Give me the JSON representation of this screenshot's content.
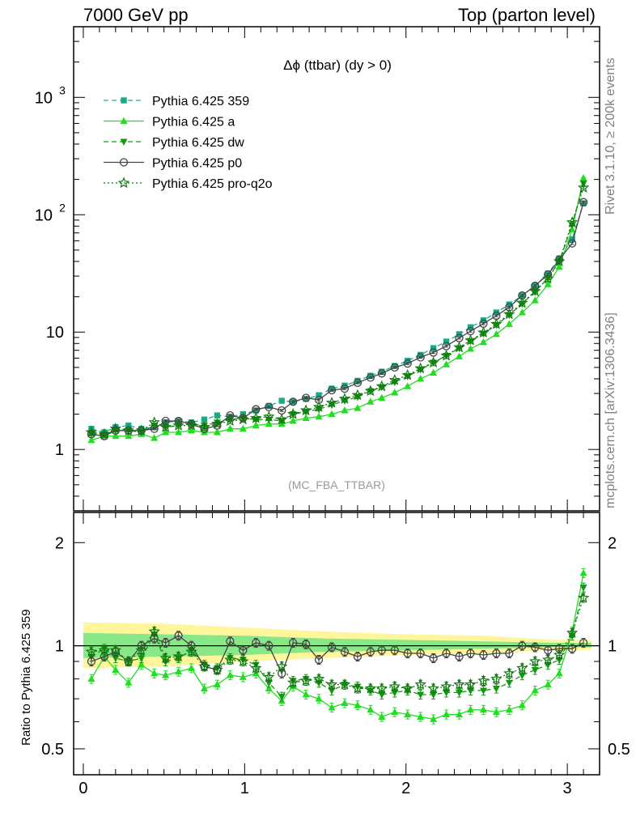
{
  "header": {
    "left": "7000 GeV pp",
    "right": "Top (parton level)"
  },
  "side_labels": {
    "rivet": "Rivet 3.1.10, ≥ 200k events",
    "mcplots": "mcplots.cern.ch [arXiv:1306.3436]"
  },
  "plot_title": "Δϕ (ttbar) (dy > 0)",
  "analysis_label": "(MC_FBA_TTBAR)",
  "ratio_ylabel": "Ratio to Pythia 6.425 359",
  "top_ticks": [
    {
      "v": 1,
      "label": "1",
      "sup": ""
    },
    {
      "v": 10,
      "label": "10",
      "sup": ""
    },
    {
      "v": 100,
      "label": "10",
      "sup": "2"
    },
    {
      "v": 1000,
      "label": "10",
      "sup": "3"
    }
  ],
  "ratio_ticks": [
    {
      "v": 0.5,
      "label": "0.5"
    },
    {
      "v": 1,
      "label": "1"
    },
    {
      "v": 2,
      "label": "2"
    }
  ],
  "x_ticks": [
    {
      "v": 0,
      "label": "0"
    },
    {
      "v": 1,
      "label": "1"
    },
    {
      "v": 2,
      "label": "2"
    },
    {
      "v": 3,
      "label": "3"
    }
  ],
  "colors": {
    "p359": "#1aaa88",
    "pa": "#22dd22",
    "pdw": "#119911",
    "pp0": "#444444",
    "pq2o": "#117711",
    "band_yellow": "#fff59a",
    "band_green": "#88e888"
  },
  "chart_data": [
    {
      "type": "line",
      "yscale": "log",
      "xlim": [
        -0.06,
        3.2
      ],
      "ylim": [
        0.3,
        4000
      ],
      "x": [
        0.05,
        0.13,
        0.2,
        0.28,
        0.36,
        0.44,
        0.51,
        0.59,
        0.67,
        0.75,
        0.83,
        0.91,
        0.99,
        1.07,
        1.15,
        1.23,
        1.3,
        1.38,
        1.46,
        1.54,
        1.62,
        1.7,
        1.78,
        1.85,
        1.93,
        2.01,
        2.09,
        2.17,
        2.25,
        2.33,
        2.4,
        2.48,
        2.56,
        2.64,
        2.72,
        2.8,
        2.88,
        2.95,
        3.03,
        3.1
      ],
      "series": [
        {
          "name": "Pythia 6.425 359",
          "key": "p359",
          "marker": "square",
          "dash": "6,4",
          "values": [
            1.5,
            1.4,
            1.55,
            1.6,
            1.5,
            1.55,
            1.7,
            1.75,
            1.7,
            1.8,
            1.95,
            1.9,
            2.0,
            2.15,
            2.35,
            2.6,
            2.55,
            2.7,
            2.9,
            3.3,
            3.5,
            3.85,
            4.25,
            4.6,
            5.15,
            5.7,
            6.4,
            7.3,
            8.3,
            9.6,
            11.0,
            12.6,
            14.7,
            17.2,
            20.5,
            24.8,
            31.5,
            42.5,
            62.0,
            125.0
          ]
        },
        {
          "name": "Pythia 6.425 a",
          "key": "pa",
          "marker": "triangle-up",
          "dash": "",
          "values": [
            1.2,
            1.3,
            1.3,
            1.3,
            1.35,
            1.25,
            1.4,
            1.4,
            1.45,
            1.4,
            1.4,
            1.5,
            1.5,
            1.6,
            1.65,
            1.65,
            1.75,
            1.85,
            1.9,
            2.0,
            2.15,
            2.25,
            2.55,
            2.75,
            3.05,
            3.45,
            4.0,
            4.5,
            5.3,
            6.2,
            7.2,
            8.2,
            9.6,
            11.7,
            14.7,
            18.6,
            25.5,
            36.0,
            75.0,
            205.0
          ]
        },
        {
          "name": "Pythia 6.425 dw",
          "key": "pdw",
          "marker": "triangle-down",
          "dash": "6,4",
          "values": [
            1.35,
            1.35,
            1.45,
            1.45,
            1.4,
            1.6,
            1.55,
            1.6,
            1.65,
            1.6,
            1.7,
            1.8,
            1.85,
            1.8,
            1.8,
            1.75,
            2.0,
            2.1,
            2.2,
            2.4,
            2.6,
            2.8,
            3.15,
            3.4,
            3.75,
            4.2,
            4.8,
            5.5,
            6.3,
            7.3,
            8.4,
            9.7,
            11.5,
            14.0,
            17.5,
            22.0,
            29.0,
            40.0,
            82.0,
            185.0
          ]
        },
        {
          "name": "Pythia 6.425 p0",
          "key": "pp0",
          "marker": "circle-open",
          "dash": "",
          "values": [
            1.35,
            1.3,
            1.45,
            1.45,
            1.45,
            1.5,
            1.75,
            1.75,
            1.65,
            1.5,
            1.6,
            1.95,
            1.85,
            2.2,
            2.3,
            2.15,
            2.55,
            2.75,
            2.65,
            3.2,
            3.3,
            3.7,
            4.1,
            4.45,
            5.0,
            5.4,
            6.1,
            6.7,
            7.6,
            8.9,
            10.2,
            11.8,
            13.8,
            16.3,
            20.5,
            24.8,
            31.0,
            41.5,
            57.0,
            128.0
          ]
        },
        {
          "name": "Pythia 6.425 pro-q2o",
          "key": "pq2o",
          "marker": "star-open",
          "dash": "2,3",
          "values": [
            1.4,
            1.35,
            1.5,
            1.45,
            1.45,
            1.7,
            1.55,
            1.6,
            1.6,
            1.55,
            1.65,
            1.75,
            1.8,
            1.85,
            1.9,
            1.8,
            2.0,
            2.15,
            2.3,
            2.5,
            2.7,
            2.9,
            3.15,
            3.45,
            3.9,
            4.3,
            4.9,
            5.5,
            6.3,
            7.4,
            8.5,
            9.9,
            11.7,
            14.2,
            17.7,
            22.3,
            28.5,
            40.0,
            86.0,
            170.0
          ]
        }
      ]
    },
    {
      "type": "line",
      "yscale": "log",
      "ylabel": "Ratio to Pythia 6.425 359",
      "xlim": [
        -0.06,
        3.2
      ],
      "ylim": [
        0.42,
        2.45
      ],
      "x": [
        0.05,
        0.13,
        0.2,
        0.28,
        0.36,
        0.44,
        0.51,
        0.59,
        0.67,
        0.75,
        0.83,
        0.91,
        0.99,
        1.07,
        1.15,
        1.23,
        1.3,
        1.38,
        1.46,
        1.54,
        1.62,
        1.7,
        1.78,
        1.85,
        1.93,
        2.01,
        2.09,
        2.17,
        2.25,
        2.33,
        2.4,
        2.48,
        2.56,
        2.64,
        2.72,
        2.8,
        2.88,
        2.95,
        3.03,
        3.1
      ],
      "band_x": [
        0.0,
        0.5,
        1.0,
        1.5,
        2.0,
        2.5,
        2.9,
        3.15
      ],
      "band_yellow_hi": [
        1.17,
        1.16,
        1.13,
        1.1,
        1.08,
        1.07,
        1.04,
        1.04
      ],
      "band_yellow_lo": [
        0.86,
        0.87,
        0.9,
        0.92,
        0.94,
        0.95,
        0.97,
        0.97
      ],
      "band_green_hi": [
        1.09,
        1.08,
        1.07,
        1.05,
        1.04,
        1.03,
        1.02,
        1.02
      ],
      "band_green_lo": [
        0.92,
        0.93,
        0.94,
        0.96,
        0.97,
        0.98,
        0.99,
        0.99
      ],
      "series": [
        {
          "name": "Pythia 6.425 a",
          "key": "pa",
          "marker": "triangle-up",
          "dash": "",
          "values": [
            0.8,
            0.93,
            0.85,
            0.78,
            0.88,
            0.83,
            0.82,
            0.84,
            0.86,
            0.75,
            0.77,
            0.82,
            0.81,
            0.83,
            0.75,
            0.69,
            0.76,
            0.72,
            0.7,
            0.66,
            0.68,
            0.67,
            0.65,
            0.62,
            0.64,
            0.63,
            0.62,
            0.61,
            0.63,
            0.63,
            0.65,
            0.65,
            0.64,
            0.65,
            0.67,
            0.74,
            0.77,
            0.83,
            1.1,
            1.63
          ]
        },
        {
          "name": "Pythia 6.425 dw",
          "key": "pdw",
          "marker": "triangle-down",
          "dash": "6,4",
          "values": [
            0.93,
            0.98,
            0.92,
            0.9,
            0.92,
            1.08,
            0.9,
            0.92,
            0.97,
            0.88,
            0.86,
            0.92,
            0.91,
            0.88,
            0.78,
            0.71,
            0.79,
            0.8,
            0.78,
            0.74,
            0.77,
            0.76,
            0.74,
            0.72,
            0.73,
            0.74,
            0.72,
            0.72,
            0.73,
            0.73,
            0.74,
            0.74,
            0.75,
            0.78,
            0.82,
            0.85,
            0.88,
            0.91,
            1.07,
            1.48
          ]
        },
        {
          "name": "Pythia 6.425 p0",
          "key": "pp0",
          "marker": "circle-open",
          "dash": "",
          "values": [
            0.9,
            0.93,
            0.96,
            0.9,
            1.0,
            1.05,
            1.02,
            1.07,
            1.0,
            0.87,
            0.85,
            1.03,
            0.97,
            1.02,
            1.0,
            0.83,
            1.02,
            1.01,
            0.91,
            0.99,
            0.96,
            0.93,
            0.96,
            0.97,
            0.97,
            0.95,
            0.95,
            0.92,
            0.95,
            0.93,
            0.95,
            0.94,
            0.95,
            0.95,
            1.0,
            0.99,
            0.97,
            0.98,
            0.98,
            1.02
          ]
        },
        {
          "name": "Pythia 6.425 pro-q2o",
          "key": "pq2o",
          "marker": "star-open",
          "dash": "2,3",
          "values": [
            0.96,
            0.97,
            0.97,
            0.9,
            0.97,
            1.1,
            0.92,
            0.93,
            0.96,
            0.87,
            0.85,
            0.91,
            0.9,
            0.86,
            0.81,
            0.87,
            0.78,
            0.79,
            0.8,
            0.77,
            0.77,
            0.75,
            0.75,
            0.75,
            0.76,
            0.75,
            0.77,
            0.75,
            0.76,
            0.77,
            0.77,
            0.79,
            0.8,
            0.83,
            0.86,
            0.9,
            0.91,
            0.94,
            1.09,
            1.38
          ]
        }
      ]
    }
  ]
}
